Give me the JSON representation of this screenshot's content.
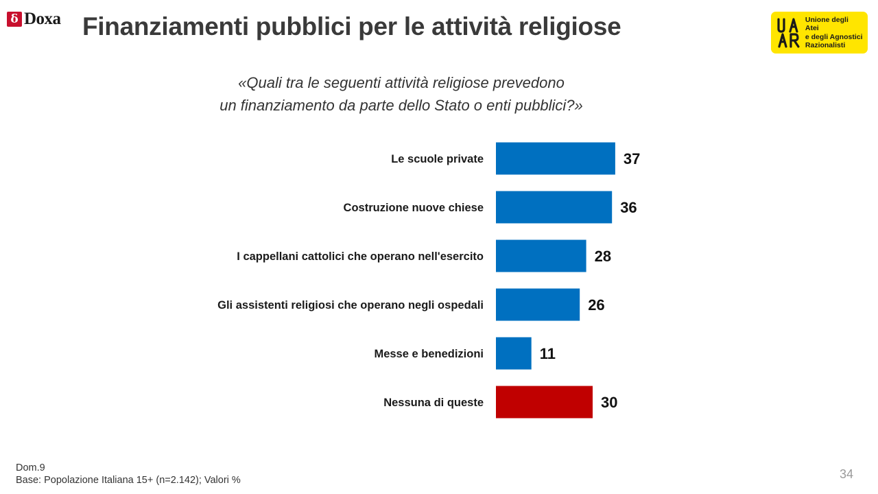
{
  "header": {
    "doxa_logo_mark": "δ",
    "doxa_logo_word": "Doxa",
    "title": "Finanziamenti pubblici per le attività religiose",
    "uaar_logo_lines": [
      "Unione degli Atei",
      "e degli Agnostici",
      "Razionalisti"
    ],
    "uaar_brand_color": "#ffe500"
  },
  "subtitle_lines": [
    "«Quali tra le seguenti attività  religiose prevedono",
    "un finanziamento da parte dello Stato o enti pubblici?»"
  ],
  "chart_data": {
    "type": "bar",
    "orientation": "horizontal",
    "categories": [
      "Le scuole private",
      "Costruzione nuove chiese",
      "I cappellani cattolici che operano nell'esercito",
      "Gli assistenti religiosi che operano negli ospedali",
      "Messe e benedizioni",
      "Nessuna di queste"
    ],
    "values": [
      37,
      36,
      28,
      26,
      11,
      30
    ],
    "bar_colors": [
      "#0070c0",
      "#0070c0",
      "#0070c0",
      "#0070c0",
      "#0070c0",
      "#c00000"
    ],
    "data_labels": true,
    "xlim": [
      0,
      100
    ],
    "grid": false
  },
  "footer": {
    "note_lines": [
      "Dom.9",
      "Base: Popolazione Italiana 15+ (n=2.142); Valori %"
    ],
    "page_number": "34"
  }
}
